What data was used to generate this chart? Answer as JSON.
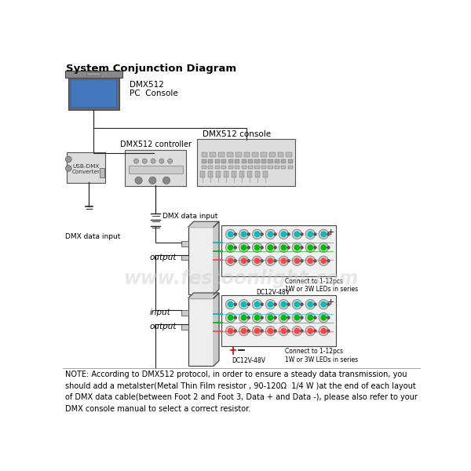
{
  "title": "System Conjunction Diagram",
  "watermark": "www.festoonlight.com",
  "note_text": "NOTE: According to DMX512 protocol, in order to ensure a steady data transmission, you\nshould add a metalster(Metal Thin Film resistor , 90-120Ω  1/4 W )at the end of each layout\nof DMX data cable(between Foot 2 and Foot 3, Data + and Data -), please also refer to your\nDMX console manual to select a correct resistor.",
  "bg_color": "#ffffff",
  "text_color": "#000000",
  "watermark_color": "#cccccc",
  "wire_colors": [
    "#00bbbb",
    "#00bb00",
    "#ff4444"
  ],
  "labels": {
    "dmx512_pc": "DMX512\nPC  Console",
    "dmx512_controller": "DMX512 controller",
    "dmx512_console": "DMX512 console",
    "dmx_data_input_top": "DMX data input",
    "dmx_data_input_left": "DMX data input",
    "output_top": "output",
    "input_bottom": "input",
    "output_bottom": "output",
    "dc_top": "DC12V-48V",
    "dc_bottom": "DC12V-48V",
    "connect_top": "Connect to 1-12pcs\n1W or 3W LEDs in series",
    "connect_bottom": "Connect to 1-12pcs\n1W or 3W LEDs in series",
    "usb_dmx": "USB-DMX\nConverter",
    "plus": "+"
  }
}
